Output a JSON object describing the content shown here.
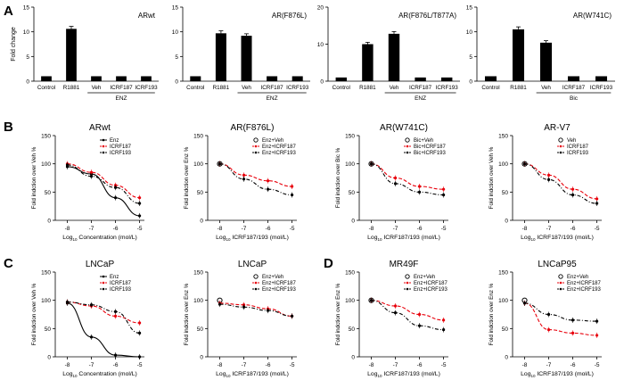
{
  "panel_letters": [
    "A",
    "B",
    "C",
    "D"
  ],
  "colors": {
    "black": "#000000",
    "red": "#e8000b"
  },
  "chart_data": [
    {
      "type": "bar",
      "panel": "A",
      "title": "ARwt",
      "ylabel": "Fold change",
      "ylim": [
        0,
        15
      ],
      "yticks": [
        0,
        5,
        10,
        15
      ],
      "categories": [
        "Control",
        "R1881",
        "Veh",
        "ICRF187",
        "ICRF193"
      ],
      "values": [
        1.0,
        10.6,
        1.0,
        1.0,
        1.0
      ],
      "errors": [
        0,
        0.5,
        0,
        0,
        0
      ],
      "bracket_label": "ENZ",
      "bracket_categories": [
        "Veh",
        "ICRF193"
      ]
    },
    {
      "type": "bar",
      "panel": "A",
      "title": "AR(F876L)",
      "ylabel": "",
      "ylim": [
        0,
        15
      ],
      "yticks": [
        0,
        5,
        10,
        15
      ],
      "categories": [
        "Control",
        "R1881",
        "Veh",
        "ICRF187",
        "ICRF193"
      ],
      "values": [
        1.0,
        9.7,
        9.2,
        1.0,
        1.0
      ],
      "errors": [
        0,
        0.5,
        0.4,
        0,
        0
      ],
      "bracket_label": "ENZ",
      "bracket_categories": [
        "Veh",
        "ICRF193"
      ]
    },
    {
      "type": "bar",
      "panel": "A",
      "title": "AR(F876L/T877A)",
      "ylabel": "",
      "ylim": [
        0,
        20
      ],
      "yticks": [
        0,
        10,
        20
      ],
      "categories": [
        "Control",
        "R1881",
        "Veh",
        "ICRF187",
        "ICRF193"
      ],
      "values": [
        1.0,
        10.0,
        12.8,
        1.0,
        1.0
      ],
      "errors": [
        0,
        0.5,
        0.6,
        0,
        0
      ],
      "bracket_label": "ENZ",
      "bracket_categories": [
        "Veh",
        "ICRF193"
      ]
    },
    {
      "type": "bar",
      "panel": "A",
      "title": "AR(W741C)",
      "ylabel": "",
      "ylim": [
        0,
        15
      ],
      "yticks": [
        0,
        5,
        10,
        15
      ],
      "categories": [
        "Control",
        "R1881",
        "Veh",
        "ICRF187",
        "ICRF193"
      ],
      "values": [
        1.0,
        10.5,
        7.8,
        1.0,
        1.0
      ],
      "errors": [
        0,
        0.5,
        0.4,
        0,
        0
      ],
      "bracket_label": "Bic",
      "bracket_categories": [
        "Veh",
        "ICRF193"
      ]
    },
    {
      "type": "line",
      "panel": "B",
      "title": "ARwt",
      "ylabel": "Fold indction over Veh %",
      "xlabel": "Concentration (mol/L)",
      "xlabel_prefix": "Log",
      "xlabel_sub": "10",
      "xlim": [
        -8.5,
        -4.8
      ],
      "ylim": [
        0,
        150
      ],
      "xticks": [
        -8,
        -7,
        -6,
        -5
      ],
      "yticks": [
        0,
        50,
        100,
        150
      ],
      "legend_position": "top-right",
      "legend_ref": null,
      "series": [
        {
          "name": "Enz",
          "color": "#000000",
          "dash": "solid",
          "marker": "dot",
          "x": [
            -8,
            -7,
            -6,
            -5
          ],
          "y": [
            95,
            82,
            40,
            8
          ]
        },
        {
          "name": "ICRF187",
          "color": "#e8000b",
          "dash": "dashed",
          "marker": "dot",
          "x": [
            -8,
            -7,
            -6,
            -5
          ],
          "y": [
            100,
            85,
            62,
            40
          ]
        },
        {
          "name": "ICRF193",
          "color": "#000000",
          "dash": "dashdot",
          "marker": "dot",
          "x": [
            -8,
            -7,
            -6,
            -5
          ],
          "y": [
            98,
            78,
            58,
            30
          ]
        }
      ]
    },
    {
      "type": "line",
      "panel": "B",
      "title": "AR(F876L)",
      "ylabel": "Fold indction over Enz %",
      "xlabel": "ICRF187/193 (mol/L)",
      "xlabel_prefix": "Log",
      "xlabel_sub": "10",
      "xlim": [
        -8.5,
        -4.8
      ],
      "ylim": [
        0,
        150
      ],
      "xticks": [
        -8,
        -7,
        -6,
        -5
      ],
      "yticks": [
        0,
        50,
        100,
        150
      ],
      "legend_position": "top-right",
      "legend_ref": "Enz+Veh",
      "series": [
        {
          "name": "Enz+ICRF187",
          "color": "#e8000b",
          "dash": "dashed",
          "marker": "dot",
          "x": [
            -8,
            -7,
            -6,
            -5
          ],
          "y": [
            100,
            80,
            70,
            60
          ]
        },
        {
          "name": "Enz+ICRF193",
          "color": "#000000",
          "dash": "dashdot",
          "marker": "dot",
          "x": [
            -8,
            -7,
            -6,
            -5
          ],
          "y": [
            100,
            73,
            55,
            45
          ]
        }
      ]
    },
    {
      "type": "line",
      "panel": "B",
      "title": "AR(W741C)",
      "ylabel": "Fold indction over Bic %",
      "xlabel": "ICRF187/193 (mol/L)",
      "xlabel_prefix": "Log",
      "xlabel_sub": "10",
      "xlim": [
        -8.5,
        -4.8
      ],
      "ylim": [
        0,
        150
      ],
      "xticks": [
        -8,
        -7,
        -6,
        -5
      ],
      "yticks": [
        0,
        50,
        100,
        150
      ],
      "legend_position": "top-right",
      "legend_ref": "Bic+Veh",
      "series": [
        {
          "name": "Bic+ICRF187",
          "color": "#e8000b",
          "dash": "dashed",
          "marker": "dot",
          "x": [
            -8,
            -7,
            -6,
            -5
          ],
          "y": [
            100,
            75,
            60,
            55
          ]
        },
        {
          "name": "Bic+ICRF193",
          "color": "#000000",
          "dash": "dashdot",
          "marker": "dot",
          "x": [
            -8,
            -7,
            -6,
            -5
          ],
          "y": [
            100,
            65,
            50,
            45
          ]
        }
      ]
    },
    {
      "type": "line",
      "panel": "B",
      "title": "AR-V7",
      "ylabel": "Fold indction over Veh %",
      "xlabel": "ICRF187/193 (mol/L)",
      "xlabel_prefix": "Log",
      "xlabel_sub": "10",
      "xlim": [
        -8.5,
        -4.8
      ],
      "ylim": [
        0,
        150
      ],
      "xticks": [
        -8,
        -7,
        -6,
        -5
      ],
      "yticks": [
        0,
        50,
        100,
        150
      ],
      "legend_position": "top-right",
      "legend_ref": "Veh",
      "series": [
        {
          "name": "ICRF187",
          "color": "#e8000b",
          "dash": "dashed",
          "marker": "dot",
          "x": [
            -8,
            -7,
            -6,
            -5
          ],
          "y": [
            100,
            80,
            55,
            38
          ]
        },
        {
          "name": "ICRF193",
          "color": "#000000",
          "dash": "dashdot",
          "marker": "dot",
          "x": [
            -8,
            -7,
            -6,
            -5
          ],
          "y": [
            100,
            72,
            45,
            30
          ]
        }
      ]
    },
    {
      "type": "line",
      "panel": "C",
      "title": "LNCaP",
      "ylabel": "Fold indction over Veh %",
      "xlabel": "Concentration (mol/L)",
      "xlabel_prefix": "Log",
      "xlabel_sub": "10",
      "xlim": [
        -8.5,
        -4.8
      ],
      "ylim": [
        0,
        150
      ],
      "xticks": [
        -8,
        -7,
        -6,
        -5
      ],
      "yticks": [
        0,
        50,
        100,
        150
      ],
      "legend_position": "top-right",
      "legend_ref": null,
      "series": [
        {
          "name": "Enz",
          "color": "#000000",
          "dash": "solid",
          "marker": "dot",
          "x": [
            -8,
            -7,
            -6,
            -5
          ],
          "y": [
            95,
            35,
            3,
            0
          ]
        },
        {
          "name": "ICRF187",
          "color": "#e8000b",
          "dash": "dashed",
          "marker": "dot",
          "x": [
            -8,
            -7,
            -6,
            -5
          ],
          "y": [
            97,
            90,
            72,
            60
          ]
        },
        {
          "name": "ICRF193",
          "color": "#000000",
          "dash": "dashdot",
          "marker": "dot",
          "x": [
            -8,
            -7,
            -6,
            -5
          ],
          "y": [
            97,
            92,
            80,
            42
          ]
        }
      ]
    },
    {
      "type": "line",
      "panel": "C",
      "title": "LNCaP",
      "ylabel": "Fold indction over Enz %",
      "xlabel": "ICRF187/193 (mol/L)",
      "xlabel_prefix": "Log",
      "xlabel_sub": "10",
      "xlim": [
        -8.5,
        -4.8
      ],
      "ylim": [
        0,
        150
      ],
      "xticks": [
        -8,
        -7,
        -6,
        -5
      ],
      "yticks": [
        0,
        50,
        100,
        150
      ],
      "legend_position": "top-right",
      "legend_ref": "Enz+Veh",
      "series": [
        {
          "name": "Enz+ICRF187",
          "color": "#e8000b",
          "dash": "dashed",
          "marker": "dot",
          "x": [
            -8,
            -7,
            -6,
            -5
          ],
          "y": [
            95,
            92,
            85,
            72
          ]
        },
        {
          "name": "Enz+ICRF193",
          "color": "#000000",
          "dash": "dashdot",
          "marker": "dot",
          "x": [
            -8,
            -7,
            -6,
            -5
          ],
          "y": [
            93,
            88,
            82,
            72
          ]
        }
      ]
    },
    {
      "type": "line",
      "panel": "D",
      "title": "MR49F",
      "ylabel": "Fold indction over Enz %",
      "xlabel": "ICRF187/193 (mol/L)",
      "xlabel_prefix": "Log",
      "xlabel_sub": "10",
      "xlim": [
        -8.5,
        -4.8
      ],
      "ylim": [
        0,
        150
      ],
      "xticks": [
        -8,
        -7,
        -6,
        -5
      ],
      "yticks": [
        0,
        50,
        100,
        150
      ],
      "legend_position": "top-right",
      "legend_ref": "Enz+Veh",
      "series": [
        {
          "name": "Enz+ICRF187",
          "color": "#e8000b",
          "dash": "dashed",
          "marker": "dot",
          "x": [
            -8,
            -7,
            -6,
            -5
          ],
          "y": [
            100,
            90,
            75,
            65
          ]
        },
        {
          "name": "Enz+ICRF193",
          "color": "#000000",
          "dash": "dashdot",
          "marker": "dot",
          "x": [
            -8,
            -7,
            -6,
            -5
          ],
          "y": [
            100,
            78,
            55,
            48
          ]
        }
      ]
    },
    {
      "type": "line",
      "panel": "D",
      "title": "LNCaP95",
      "ylabel": "Fold indction over Enz %",
      "xlabel": "ICRF187/193 (mol/L)",
      "xlabel_prefix": "Log",
      "xlabel_sub": "10",
      "xlim": [
        -8.5,
        -4.8
      ],
      "ylim": [
        0,
        150
      ],
      "xticks": [
        -8,
        -7,
        -6,
        -5
      ],
      "yticks": [
        0,
        50,
        100,
        150
      ],
      "legend_position": "top-right",
      "legend_ref": "Enz+Veh",
      "series": [
        {
          "name": "Enz+ICRF187",
          "color": "#e8000b",
          "dash": "dashed",
          "marker": "dot",
          "x": [
            -8,
            -7,
            -6,
            -5
          ],
          "y": [
            95,
            48,
            42,
            38
          ]
        },
        {
          "name": "Enz+ICRF193",
          "color": "#000000",
          "dash": "dashdot",
          "marker": "dot",
          "x": [
            -8,
            -7,
            -6,
            -5
          ],
          "y": [
            95,
            75,
            65,
            63
          ]
        }
      ]
    }
  ]
}
